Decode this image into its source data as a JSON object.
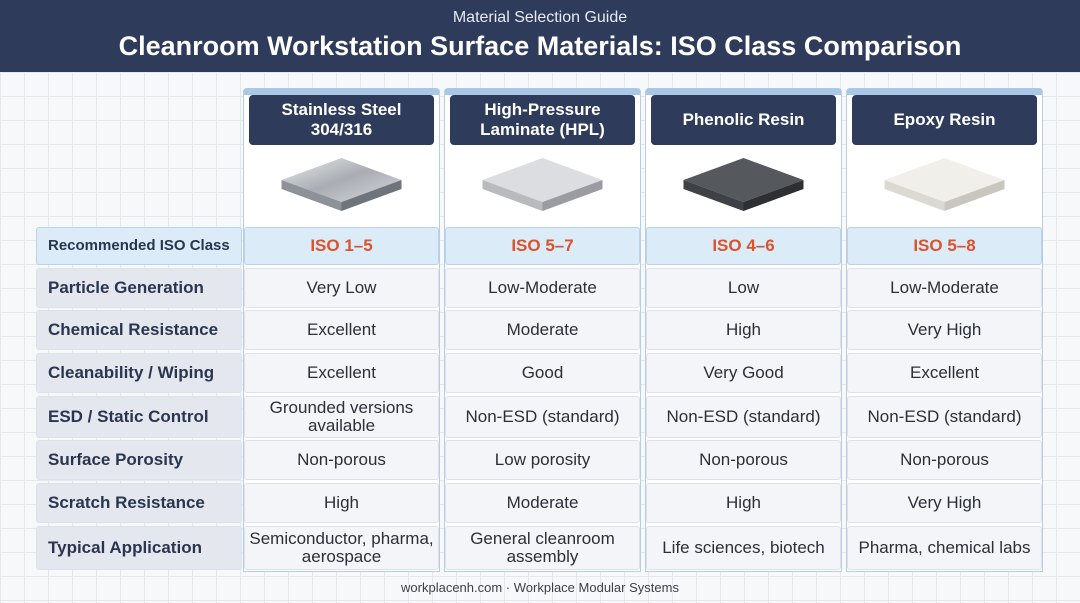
{
  "header": {
    "subtitle": "Material Selection Guide",
    "title": "Cleanroom Workstation Surface Materials: ISO Class Comparison"
  },
  "table": {
    "columns": [
      "Stainless Steel 304/316",
      "High-Pressure Laminate (HPL)",
      "Phenolic Resin",
      "Epoxy Resin"
    ],
    "rows": [
      {
        "label": "Recommended ISO Class",
        "values": [
          "ISO 1–5",
          "ISO 5–7",
          "ISO 4–6",
          "ISO 5–8"
        ]
      },
      {
        "label": "Particle Generation",
        "values": [
          "Very Low",
          "Low-Moderate",
          "Low",
          "Low-Moderate"
        ]
      },
      {
        "label": "Chemical Resistance",
        "values": [
          "Excellent",
          "Moderate",
          "High",
          "Very High"
        ]
      },
      {
        "label": "Cleanability / Wiping",
        "values": [
          "Excellent",
          "Good",
          "Very Good",
          "Excellent"
        ]
      },
      {
        "label": "ESD / Static Control",
        "values": [
          "Grounded versions available",
          "Non-ESD (standard)",
          "Non-ESD (standard)",
          "Non-ESD (standard)"
        ]
      },
      {
        "label": "Surface Porosity",
        "values": [
          "Non-porous",
          "Low porosity",
          "Non-porous",
          "Non-porous"
        ]
      },
      {
        "label": "Scratch Resistance",
        "values": [
          "High",
          "Moderate",
          "High",
          "Very High"
        ]
      },
      {
        "label": "Typical Application",
        "values": [
          "Semiconductor, pharma, aerospace",
          "General cleanroom assembly",
          "Life sciences, biotech",
          "Pharma, chemical labs"
        ]
      }
    ]
  },
  "footer": "workplacenh.com · Workplace Modular Systems"
}
